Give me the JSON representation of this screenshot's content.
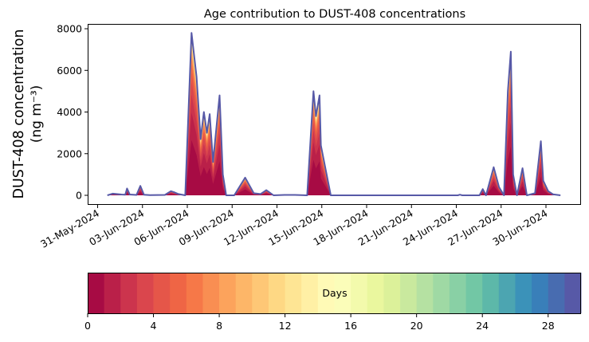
{
  "chart_data": {
    "type": "area",
    "stacked": true,
    "title": "Age contribution to DUST-408 concentrations",
    "ylabel_line1": "DUST-408 concentration",
    "ylabel_line2": "(ng m⁻³)",
    "xlabel": "",
    "ylim": [
      -400,
      8200
    ],
    "yticks": [
      0,
      2000,
      4000,
      6000,
      8000
    ],
    "ytick_labels": [
      "0",
      "2000",
      "4000",
      "6000",
      "8000"
    ],
    "x_origin_label": "31-May-2024",
    "x_unit": "days since 31-May-2024",
    "xlim": [
      -0.4,
      32.5
    ],
    "xticks": [
      0,
      3,
      6,
      9,
      12,
      15,
      18,
      21,
      24,
      27,
      30
    ],
    "xtick_labels": [
      "31-May-2024",
      "03-Jun-2024",
      "06-Jun-2024",
      "09-Jun-2024",
      "12-Jun-2024",
      "15-Jun-2024",
      "18-Jun-2024",
      "21-Jun-2024",
      "24-Jun-2024",
      "27-Jun-2024",
      "30-Jun-2024"
    ],
    "total": {
      "x": [
        0.65,
        1.0,
        1.6,
        1.85,
        1.97,
        2.15,
        2.6,
        2.86,
        3.1,
        3.5,
        4.5,
        4.9,
        5.11,
        5.4,
        5.86,
        6.28,
        6.41,
        6.62,
        6.89,
        7.11,
        7.31,
        7.5,
        7.72,
        8.16,
        8.38,
        8.6,
        9.14,
        9.87,
        10.45,
        10.9,
        11.29,
        11.77,
        12.5,
        13.2,
        14.02,
        14.44,
        14.61,
        14.85,
        14.94,
        15.27,
        15.6,
        20.0,
        24.1,
        24.24,
        24.4,
        25.55,
        25.77,
        25.99,
        26.5,
        26.86,
        27.19,
        27.45,
        27.65,
        27.8,
        28.06,
        28.43,
        28.72,
        29.27,
        29.66,
        29.82,
        30.15,
        30.47,
        30.97
      ],
      "y": [
        0,
        80,
        40,
        30,
        330,
        40,
        20,
        450,
        30,
        10,
        20,
        200,
        150,
        60,
        0,
        7800,
        7000,
        5700,
        2700,
        4000,
        3000,
        3900,
        1600,
        4800,
        1000,
        0,
        0,
        850,
        100,
        60,
        250,
        0,
        20,
        20,
        0,
        5000,
        3800,
        4800,
        2400,
        1200,
        0,
        0,
        0,
        30,
        0,
        0,
        300,
        0,
        1350,
        400,
        0,
        5000,
        6900,
        1000,
        0,
        1300,
        0,
        100,
        2600,
        700,
        200,
        50,
        0
      ]
    },
    "age_bins_days": [
      0,
      1,
      2,
      3,
      4,
      5,
      6,
      7,
      8,
      9,
      10,
      11,
      12,
      13,
      14,
      15,
      16,
      17,
      18,
      19,
      20,
      21,
      22,
      23,
      24,
      25,
      26,
      27,
      28,
      29
    ],
    "age_fractions": [
      0.34,
      0.17,
      0.11,
      0.08,
      0.06,
      0.045,
      0.035,
      0.028,
      0.022,
      0.018,
      0.015,
      0.012,
      0.01,
      0.008,
      0.007,
      0.006,
      0.005,
      0.004,
      0.004,
      0.003,
      0.003,
      0.002,
      0.002,
      0.002,
      0.002,
      0.001,
      0.001,
      0.001,
      0.001,
      0.004
    ],
    "colorbar": {
      "label": "Days",
      "range": [
        0,
        30
      ],
      "n_bins": 30,
      "ticks": [
        0,
        4,
        8,
        12,
        16,
        20,
        24,
        28
      ],
      "tick_labels": [
        "0",
        "4",
        "8",
        "12",
        "16",
        "20",
        "24",
        "28"
      ],
      "colormap_anchors": [
        "#9e0142",
        "#d53e4f",
        "#f46d43",
        "#fdae61",
        "#fee08b",
        "#ffffbf",
        "#e6f598",
        "#abdda4",
        "#66c2a5",
        "#3288bd",
        "#5e4fa2"
      ]
    }
  }
}
